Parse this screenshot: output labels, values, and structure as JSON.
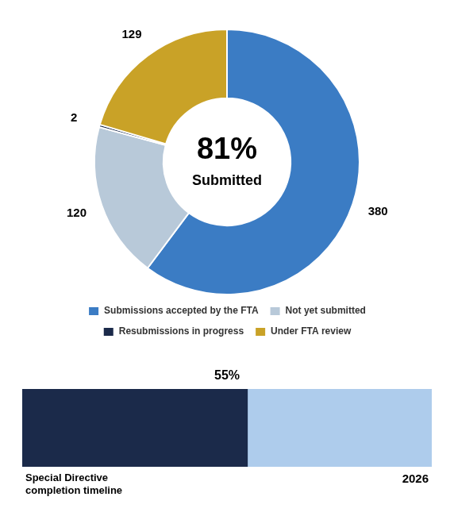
{
  "chart_data": [
    {
      "type": "doughnut",
      "categories": [
        "Submissions accepted by the FTA",
        "Not yet submitted",
        "Resubmissions in progress",
        "Under FTA review"
      ],
      "values": [
        380,
        120,
        2,
        129
      ],
      "colors": [
        "#3B7CC4",
        "#B8C9D9",
        "#1B2A4A",
        "#C9A227"
      ],
      "data_labels": true,
      "annotations": [
        "81%",
        "Submitted"
      ],
      "legend": "bottom"
    },
    {
      "type": "bar",
      "orientation": "horizontal",
      "categories": [
        null
      ],
      "series": [
        {
          "color": "#AECCEC",
          "values": [
            100
          ]
        },
        {
          "color": "#1B2A4A",
          "values": [
            55
          ],
          "value_labels": [
            "55%"
          ]
        }
      ],
      "xlim": [
        0,
        100
      ],
      "tick_labels": false,
      "grid": false,
      "data_labels": true,
      "annotations": [
        "Special Directive\ncompletion timeline",
        "2026"
      ]
    }
  ]
}
